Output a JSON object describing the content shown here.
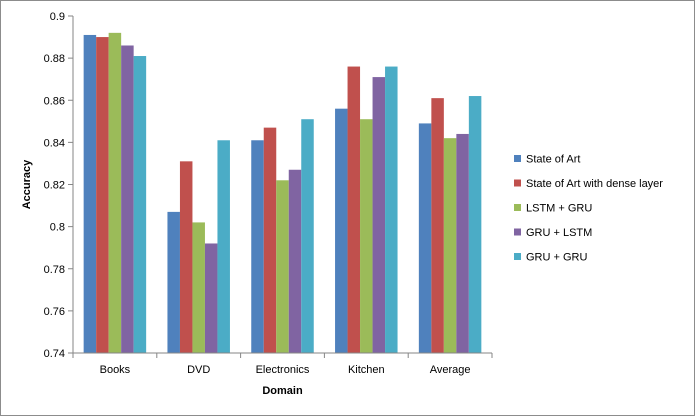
{
  "chart_data": {
    "type": "bar",
    "title": "",
    "xlabel": "Domain",
    "ylabel": "Accuracy",
    "ylim": [
      0.74,
      0.9
    ],
    "yticks": [
      0.74,
      0.76,
      0.78,
      0.8,
      0.82,
      0.84,
      0.86,
      0.88,
      0.9
    ],
    "ytick_labels": [
      "0.74",
      "0.76",
      "0.78",
      "0.8",
      "0.82",
      "0.84",
      "0.86",
      "0.88",
      "0.9"
    ],
    "grid": false,
    "legend_position": "right",
    "categories": [
      "Books",
      "DVD",
      "Electronics",
      "Kitchen",
      "Average"
    ],
    "series": [
      {
        "name": "State of Art",
        "color": "#4f81bd",
        "values": [
          0.891,
          0.807,
          0.841,
          0.856,
          0.849
        ]
      },
      {
        "name": "State of Art with dense layer",
        "color": "#c0504d",
        "values": [
          0.89,
          0.831,
          0.847,
          0.876,
          0.861
        ]
      },
      {
        "name": "LSTM + GRU",
        "color": "#9bbb59",
        "values": [
          0.892,
          0.802,
          0.822,
          0.851,
          0.842
        ]
      },
      {
        "name": "GRU + LSTM",
        "color": "#8064a2",
        "values": [
          0.886,
          0.792,
          0.827,
          0.871,
          0.844
        ]
      },
      {
        "name": "GRU + GRU",
        "color": "#4bacc6",
        "values": [
          0.881,
          0.841,
          0.851,
          0.876,
          0.862
        ]
      }
    ]
  }
}
